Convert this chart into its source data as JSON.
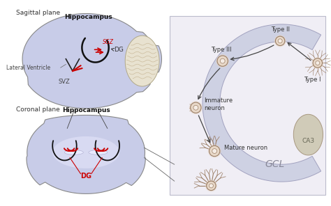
{
  "bg_color": "#ffffff",
  "brain_fill": "#c8cce8",
  "brain_edge": "#888888",
  "cerebellum_fill": "#e8e2d0",
  "sgz_color": "#cc0000",
  "neuron_fill": "#e8d8c8",
  "neuron_inner": "#f5ece4",
  "neuron_edge": "#9b7e65",
  "ca3_fill": "#d0cbb8",
  "ca3_edge": "#a89880",
  "gcl_fill": "#c8cce0",
  "gcl_edge": "#9898b8",
  "right_panel_bg": "#f0eef5",
  "right_panel_edge": "#bbbbcc",
  "arrow_color": "#444444",
  "text_color": "#333333",
  "labels": {
    "sagittal": "Sagittal plane",
    "coronal": "Coronal plane",
    "hippocampus_top": "Hippocampus",
    "hippocampus_bottom": "Hippocampus",
    "lateral_ventricle": "Lateral Ventricle",
    "svz": "SVZ",
    "sgz": "SGZ",
    "dg_top": "DG",
    "dg_bottom": "DG",
    "type1": "Type I",
    "type2": "Type II",
    "type3": "Type III",
    "immature": "Immature\nneuron",
    "mature": "Mature neuron",
    "ca3": "CA3",
    "gcl": "GCL"
  }
}
